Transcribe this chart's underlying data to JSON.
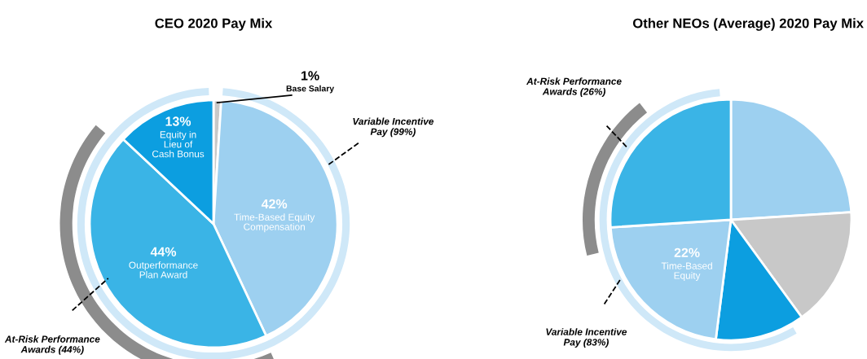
{
  "chart_data": [
    {
      "type": "pie",
      "title": "CEO 2020 Pay Mix",
      "categories": [
        "Base Salary",
        "Time-Based Equity\nCompensation",
        "Outperformance\nPlan Award",
        "Equity in\nLieu of\nCash Bonus"
      ],
      "values": [
        1,
        42,
        44,
        13
      ],
      "value_labels": [
        "1%",
        "42%",
        "44%",
        "13%"
      ],
      "colors": [
        "#c8c8c8",
        "#9dd0f0",
        "#3ab4e6",
        "#0c9ee0"
      ],
      "annotations": [
        "Variable Incentive\nPay (99%)",
        "At-Risk Performance\nAwards (44%)"
      ]
    },
    {
      "type": "pie",
      "title": "Other NEOs (Average) 2020 Pay Mix",
      "categories": [
        null,
        null,
        null,
        "Time-Based\nEquity",
        null
      ],
      "values": [
        24,
        16,
        12,
        22,
        26
      ],
      "value_labels": [
        null,
        null,
        null,
        "22%",
        null
      ],
      "colors": [
        "#9dd0f0",
        "#c8c8c8",
        "#0c9ee0",
        "#9dd0f0",
        "#3ab4e6"
      ],
      "annotations": [
        "At-Risk Performance\nAwards (26%)",
        "Variable Incentive\nPay (83%)"
      ]
    }
  ]
}
